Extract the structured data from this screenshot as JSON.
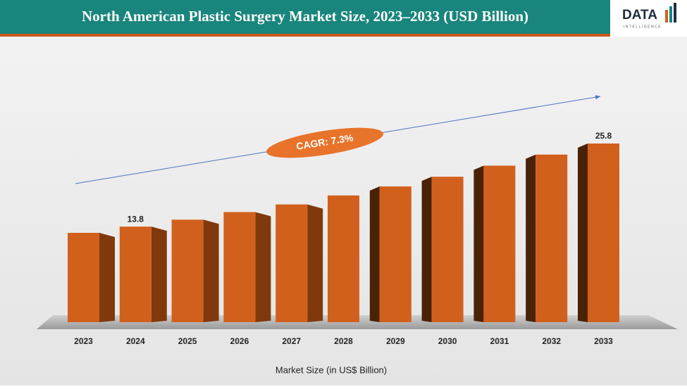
{
  "chart_data": {
    "type": "bar",
    "title": "North American Plastic Surgery Market Size, 2023–2033 (USD Billion)",
    "annotation": "CAGR: 7.3%",
    "x_label": "Market Size (in US$ Billion)",
    "logo": {
      "word": "DATA",
      "tagline": "INTELLIGENCE"
    },
    "categories": [
      "2023",
      "2024",
      "2025",
      "2026",
      "2027",
      "2028",
      "2029",
      "2030",
      "2031",
      "2032",
      "2033"
    ],
    "values": [
      12.9,
      13.8,
      14.8,
      15.9,
      17.0,
      18.3,
      19.6,
      21.0,
      22.6,
      24.2,
      25.8
    ],
    "value_labels": [
      null,
      "13.8",
      null,
      null,
      null,
      null,
      null,
      null,
      null,
      null,
      "25.8"
    ],
    "color": "#d2601d"
  }
}
